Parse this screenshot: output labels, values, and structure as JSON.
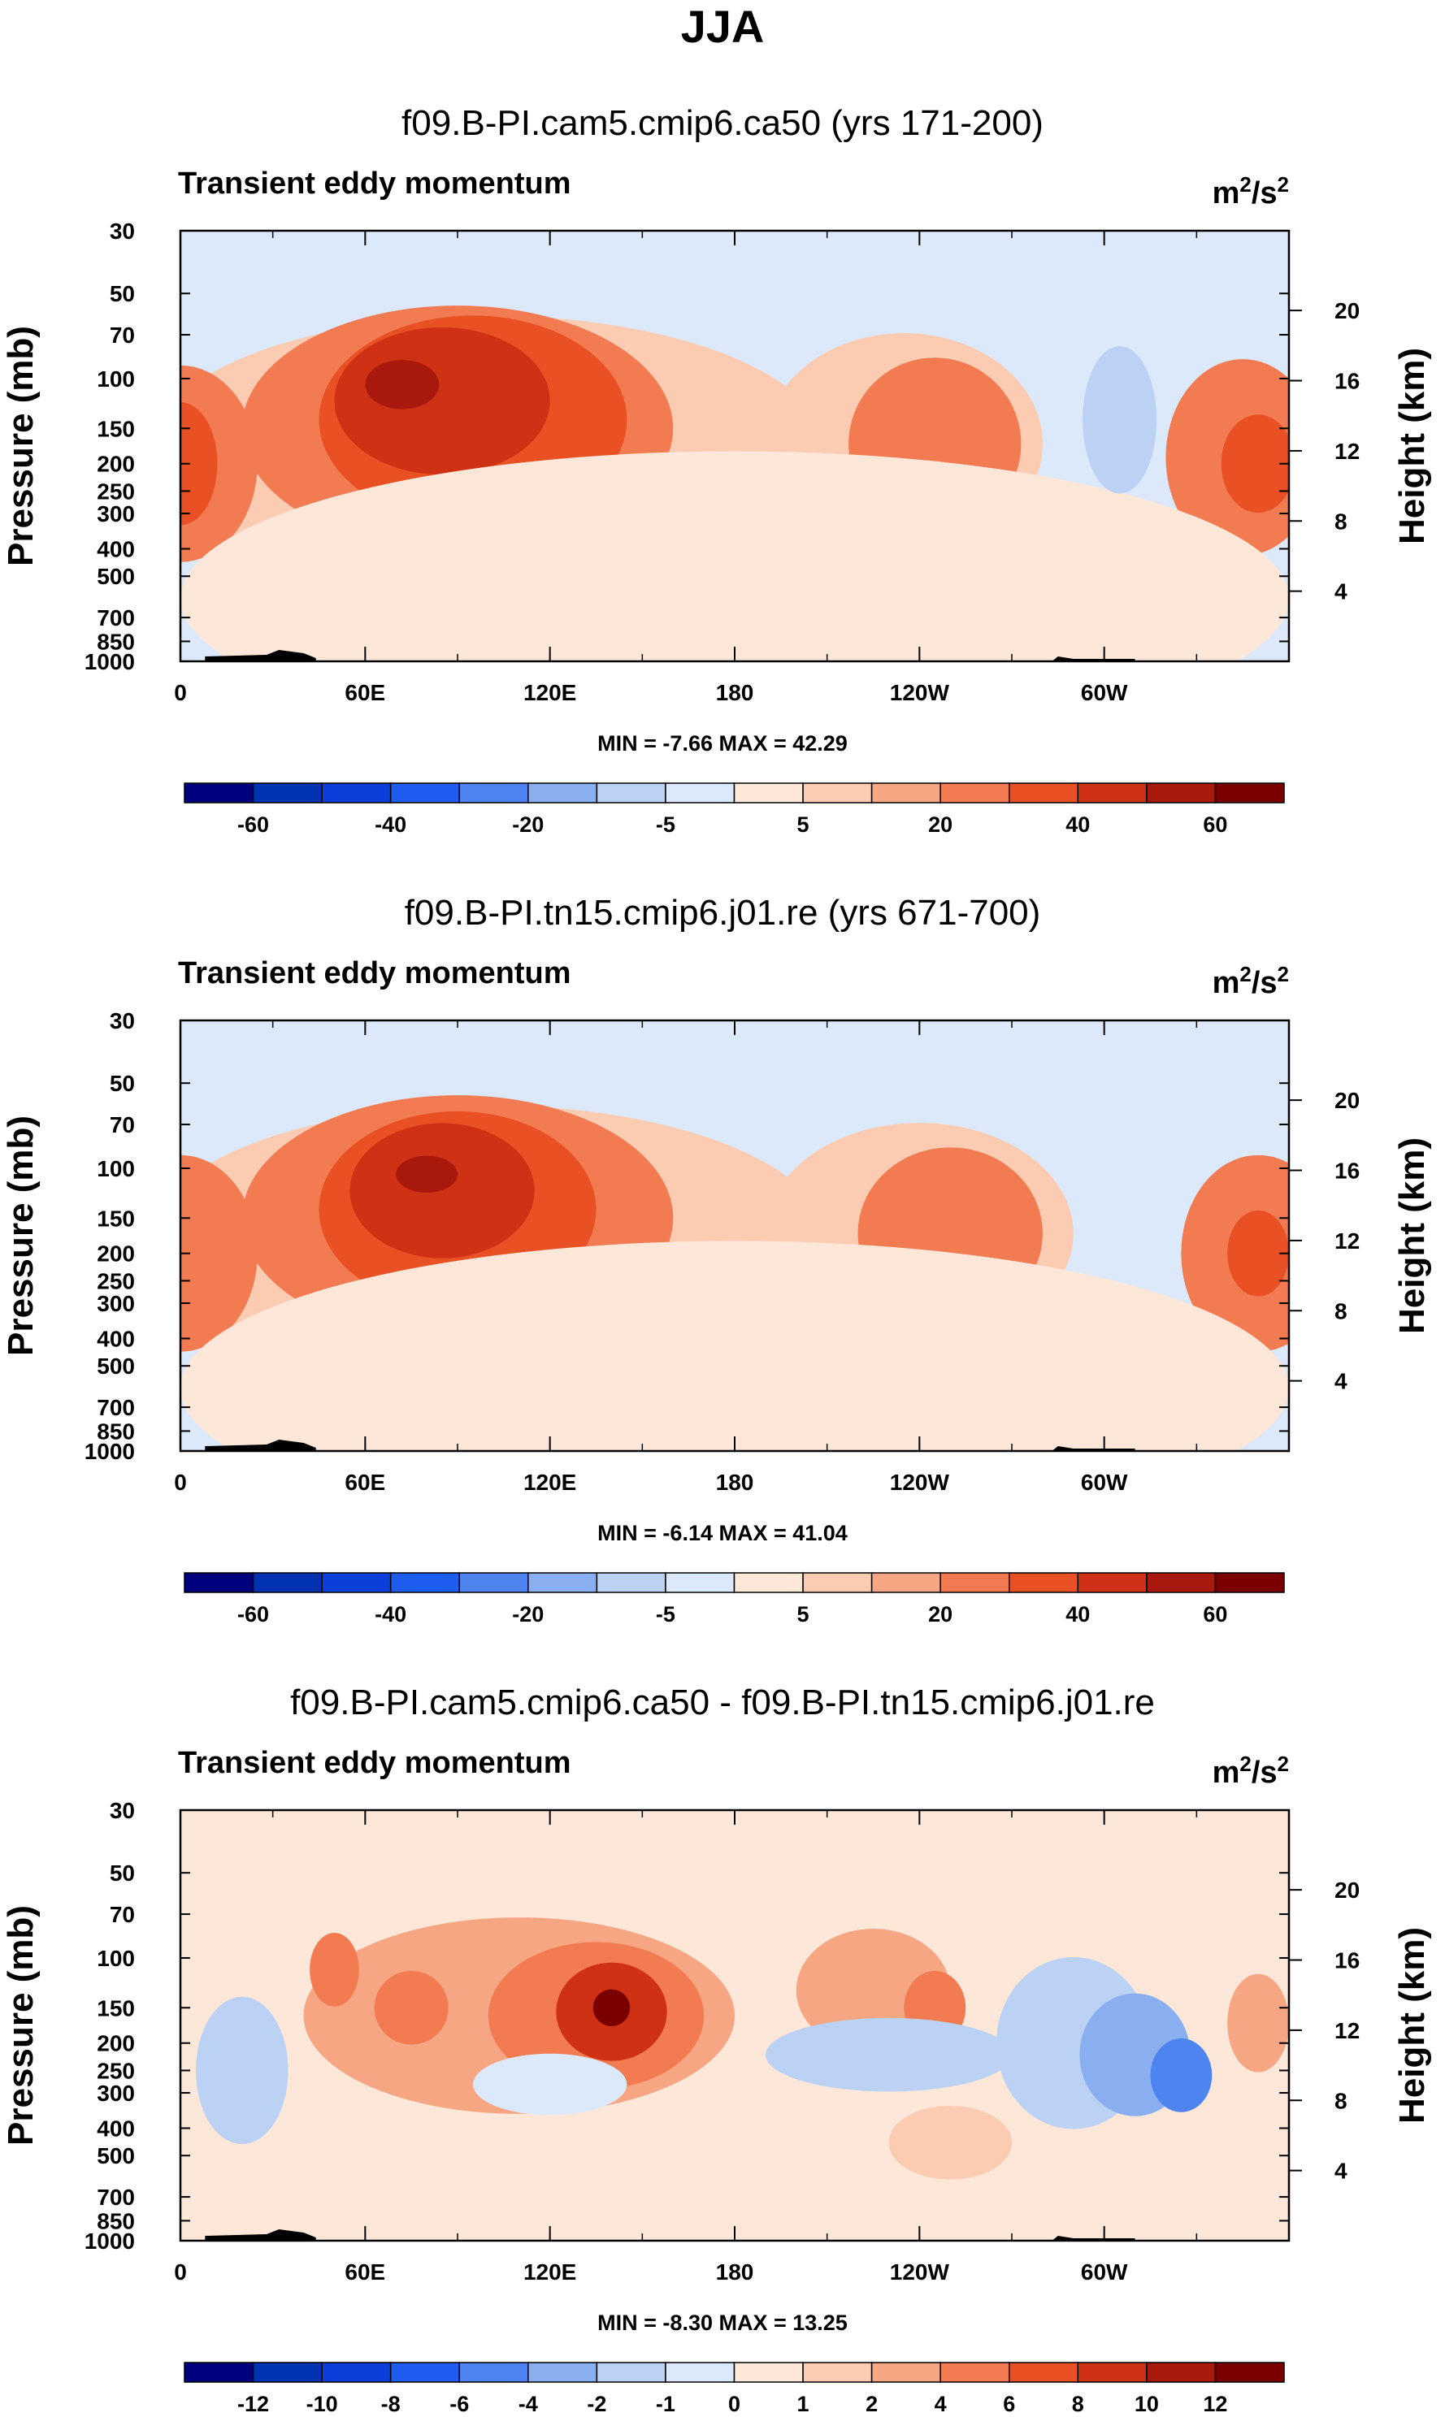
{
  "figure_title": "JJA",
  "colors": {
    "palette": [
      "#00007f",
      "#0033b2",
      "#0a40d9",
      "#1f5cf0",
      "#4d84f0",
      "#8aaff0",
      "#bcd2f5",
      "#dbe9fa",
      "#fde7d8",
      "#fbcbb2",
      "#f7a684",
      "#f27b52",
      "#e95124",
      "#cf3115",
      "#a8180d",
      "#7a0000"
    ],
    "land": "#000000"
  },
  "chart_data": [
    {
      "type": "contour",
      "title": "f09.B-PI.cam5.cmip6.ca50 (yrs 171-200)",
      "left_label": "Transient eddy momentum",
      "units_base": "m",
      "units_exp": "2",
      "units_den": "/s",
      "units_den_exp": "2",
      "ylabel": "Pressure (mb)",
      "y2label": "Height (km)",
      "yticks": [
        "30",
        "50",
        "70",
        "100",
        "150",
        "200",
        "250",
        "300",
        "400",
        "500",
        "700",
        "850",
        "1000"
      ],
      "y2ticks": [
        "20",
        "16",
        "12",
        "8",
        "4"
      ],
      "xticks": [
        "0",
        "60E",
        "120E",
        "180",
        "120W",
        "60W"
      ],
      "stats": "MIN = -7.66  MAX = 42.29",
      "colorbar_labels": [
        "-60",
        "-40",
        "-20",
        "-5",
        "5",
        "20",
        "40",
        "60"
      ],
      "background_index": 7,
      "blobs": [
        {
          "lon": 100,
          "p": 180,
          "rx": 110,
          "dp": 1.1,
          "lvl": 2
        },
        {
          "lon": 90,
          "p": 150,
          "rx": 70,
          "dp": 1.0,
          "lvl": 4
        },
        {
          "lon": 95,
          "p": 140,
          "rx": 50,
          "dp": 0.85,
          "lvl": 5
        },
        {
          "lon": 85,
          "p": 120,
          "rx": 35,
          "dp": 0.6,
          "lvl": 6
        },
        {
          "lon": 72,
          "p": 105,
          "rx": 12,
          "dp": 0.2,
          "lvl": 7
        },
        {
          "lon": 0,
          "p": 200,
          "rx": 25,
          "dp": 0.8,
          "lvl": 4
        },
        {
          "lon": 0,
          "p": 200,
          "rx": 12,
          "dp": 0.5,
          "lvl": 5
        },
        {
          "lon": 235,
          "p": 170,
          "rx": 45,
          "dp": 0.9,
          "lvl": 2
        },
        {
          "lon": 245,
          "p": 170,
          "rx": 28,
          "dp": 0.7,
          "lvl": 4
        },
        {
          "lon": 345,
          "p": 190,
          "rx": 25,
          "dp": 0.8,
          "lvl": 4
        },
        {
          "lon": 350,
          "p": 200,
          "rx": 12,
          "dp": 0.4,
          "lvl": 5
        },
        {
          "lon": 180,
          "p": 600,
          "rx": 180,
          "dp": 1.2,
          "lvl": 1
        },
        {
          "lon": 305,
          "p": 140,
          "rx": 12,
          "dp": 0.6,
          "lvl": -1
        }
      ]
    },
    {
      "type": "contour",
      "title": "f09.B-PI.tn15.cmip6.j01.re (yrs 671-700)",
      "left_label": "Transient eddy momentum",
      "units_base": "m",
      "units_exp": "2",
      "units_den": "/s",
      "units_den_exp": "2",
      "ylabel": "Pressure (mb)",
      "y2label": "Height (km)",
      "yticks": [
        "30",
        "50",
        "70",
        "100",
        "150",
        "200",
        "250",
        "300",
        "400",
        "500",
        "700",
        "850",
        "1000"
      ],
      "y2ticks": [
        "20",
        "16",
        "12",
        "8",
        "4"
      ],
      "xticks": [
        "0",
        "60E",
        "120E",
        "180",
        "120W",
        "60W"
      ],
      "stats": "MIN = -6.14  MAX = 41.04",
      "colorbar_labels": [
        "-60",
        "-40",
        "-20",
        "-5",
        "5",
        "20",
        "40",
        "60"
      ],
      "background_index": 7,
      "blobs": [
        {
          "lon": 100,
          "p": 180,
          "rx": 110,
          "dp": 1.1,
          "lvl": 2
        },
        {
          "lon": 90,
          "p": 150,
          "rx": 70,
          "dp": 1.0,
          "lvl": 4
        },
        {
          "lon": 90,
          "p": 140,
          "rx": 45,
          "dp": 0.8,
          "lvl": 5
        },
        {
          "lon": 85,
          "p": 120,
          "rx": 30,
          "dp": 0.55,
          "lvl": 6
        },
        {
          "lon": 80,
          "p": 105,
          "rx": 10,
          "dp": 0.15,
          "lvl": 7
        },
        {
          "lon": 0,
          "p": 200,
          "rx": 25,
          "dp": 0.8,
          "lvl": 4
        },
        {
          "lon": 240,
          "p": 170,
          "rx": 50,
          "dp": 0.9,
          "lvl": 2
        },
        {
          "lon": 250,
          "p": 170,
          "rx": 30,
          "dp": 0.7,
          "lvl": 4
        },
        {
          "lon": 350,
          "p": 200,
          "rx": 25,
          "dp": 0.8,
          "lvl": 4
        },
        {
          "lon": 350,
          "p": 200,
          "rx": 10,
          "dp": 0.35,
          "lvl": 5
        },
        {
          "lon": 180,
          "p": 600,
          "rx": 180,
          "dp": 1.2,
          "lvl": 1
        }
      ]
    },
    {
      "type": "contour",
      "title": "f09.B-PI.cam5.cmip6.ca50 - f09.B-PI.tn15.cmip6.j01.re",
      "left_label": "Transient eddy momentum",
      "units_base": "m",
      "units_exp": "2",
      "units_den": "/s",
      "units_den_exp": "2",
      "ylabel": "Pressure (mb)",
      "y2label": "Height (km)",
      "yticks": [
        "30",
        "50",
        "70",
        "100",
        "150",
        "200",
        "250",
        "300",
        "400",
        "500",
        "700",
        "850",
        "1000"
      ],
      "y2ticks": [
        "20",
        "16",
        "12",
        "8",
        "4"
      ],
      "xticks": [
        "0",
        "60E",
        "120E",
        "180",
        "120W",
        "60W"
      ],
      "stats": "MIN = -8.30  MAX = 13.25",
      "colorbar_labels": [
        "-12",
        "-10",
        "-8",
        "-6",
        "-4",
        "-2",
        "-1",
        "0",
        "1",
        "2",
        "4",
        "6",
        "8",
        "10",
        "12"
      ],
      "background_index": 8,
      "blobs": [
        {
          "lon": 110,
          "p": 160,
          "rx": 70,
          "dp": 0.8,
          "lvl": 2
        },
        {
          "lon": 135,
          "p": 160,
          "rx": 35,
          "dp": 0.6,
          "lvl": 3
        },
        {
          "lon": 140,
          "p": 155,
          "rx": 18,
          "dp": 0.4,
          "lvl": 5
        },
        {
          "lon": 140,
          "p": 150,
          "rx": 6,
          "dp": 0.15,
          "lvl": 7
        },
        {
          "lon": 75,
          "p": 150,
          "rx": 12,
          "dp": 0.3,
          "lvl": 3
        },
        {
          "lon": 50,
          "p": 110,
          "rx": 8,
          "dp": 0.3,
          "lvl": 3
        },
        {
          "lon": 225,
          "p": 130,
          "rx": 25,
          "dp": 0.5,
          "lvl": 2
        },
        {
          "lon": 245,
          "p": 150,
          "rx": 10,
          "dp": 0.3,
          "lvl": 3
        },
        {
          "lon": 230,
          "p": 220,
          "rx": 40,
          "dp": 0.3,
          "lvl": -2
        },
        {
          "lon": 290,
          "p": 200,
          "rx": 25,
          "dp": 0.7,
          "lvl": -2
        },
        {
          "lon": 310,
          "p": 220,
          "rx": 18,
          "dp": 0.5,
          "lvl": -3
        },
        {
          "lon": 325,
          "p": 260,
          "rx": 10,
          "dp": 0.3,
          "lvl": -4
        },
        {
          "lon": 20,
          "p": 250,
          "rx": 15,
          "dp": 0.6,
          "lvl": -2
        },
        {
          "lon": 120,
          "p": 280,
          "rx": 25,
          "dp": 0.25,
          "lvl": -1
        },
        {
          "lon": 350,
          "p": 170,
          "rx": 10,
          "dp": 0.4,
          "lvl": 2
        },
        {
          "lon": 250,
          "p": 450,
          "rx": 20,
          "dp": 0.3,
          "lvl": 1
        }
      ]
    }
  ]
}
